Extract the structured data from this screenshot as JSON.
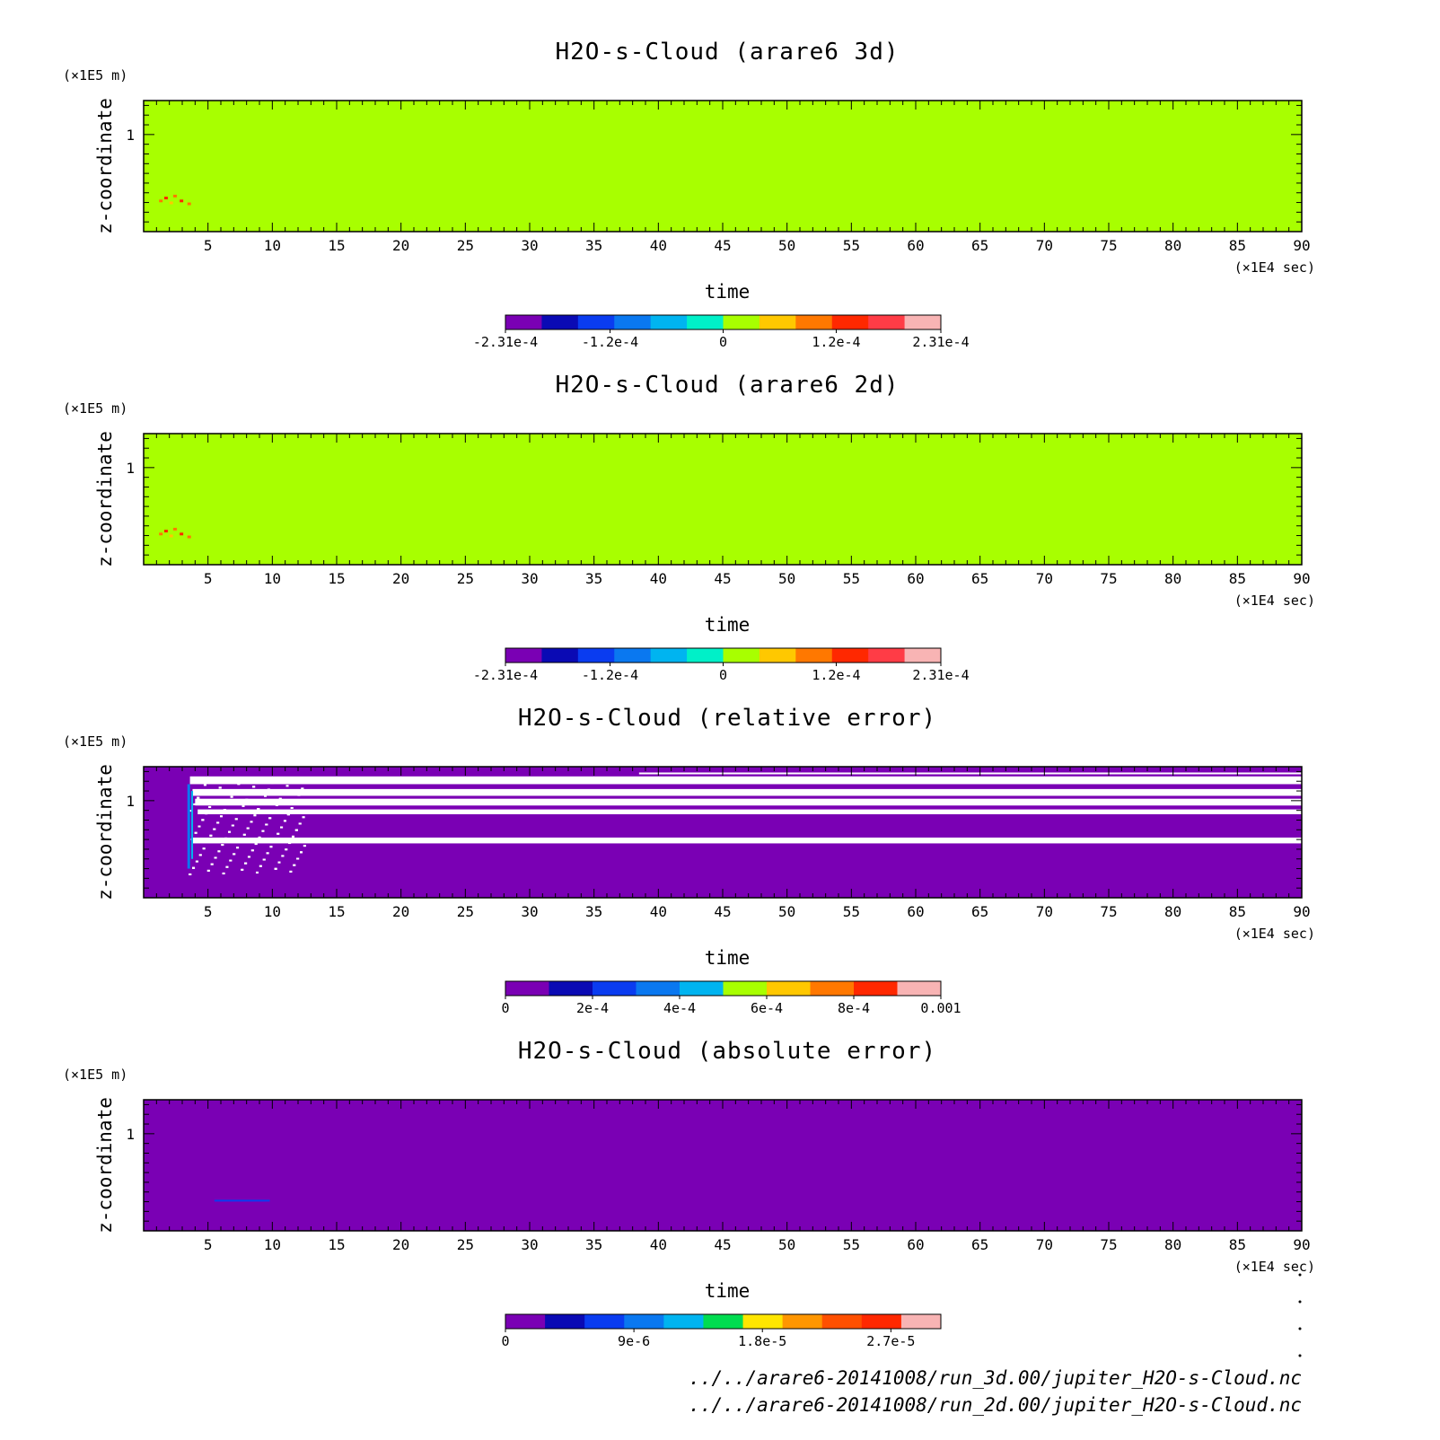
{
  "chart_data": [
    {
      "type": "heatmap",
      "title": "H2O-s-Cloud (arare6 3d)",
      "xlabel": "time",
      "ylabel": "z-coordinate",
      "x_unit": "(×1E4 sec)",
      "y_unit": "(×1E5 m)",
      "xlim": [
        0,
        90
      ],
      "ylim": [
        0,
        1.35
      ],
      "x_ticks": [
        5,
        10,
        15,
        20,
        25,
        30,
        35,
        40,
        45,
        50,
        55,
        60,
        65,
        70,
        75,
        80,
        85,
        90
      ],
      "y_ticks": [
        1
      ],
      "field": "uniform near zero; small positive (orange/red) spots near x≈1–3, z≈0.35",
      "background_color": "#a8ff00",
      "colorbar": {
        "colors": [
          "#7a00b4",
          "#0a0ab4",
          "#0a3cf0",
          "#0a78f0",
          "#00b4f0",
          "#00f0c8",
          "#a8ff00",
          "#ffc800",
          "#ff7800",
          "#ff2800",
          "#ff3c46",
          "#f8b4b4"
        ],
        "tick_labels": [
          "-2.31e-4",
          "-1.2e-4",
          "0",
          "1.2e-4",
          "2.31e-4"
        ],
        "tick_values": [
          -0.000231,
          -0.00012,
          0,
          0.00012,
          0.000231
        ],
        "range": [
          -0.000231,
          0.000231
        ]
      }
    },
    {
      "type": "heatmap",
      "title": "H2O-s-Cloud (arare6 2d)",
      "xlabel": "time",
      "ylabel": "z-coordinate",
      "x_unit": "(×1E4 sec)",
      "y_unit": "(×1E5 m)",
      "xlim": [
        0,
        90
      ],
      "ylim": [
        0,
        1.35
      ],
      "x_ticks": [
        5,
        10,
        15,
        20,
        25,
        30,
        35,
        40,
        45,
        50,
        55,
        60,
        65,
        70,
        75,
        80,
        85,
        90
      ],
      "y_ticks": [
        1
      ],
      "field": "uniform near zero; small positive (orange/red) spots near x≈1–3, z≈0.35",
      "background_color": "#a8ff00",
      "colorbar": {
        "colors": [
          "#7a00b4",
          "#0a0ab4",
          "#0a3cf0",
          "#0a78f0",
          "#00b4f0",
          "#00f0c8",
          "#a8ff00",
          "#ffc800",
          "#ff7800",
          "#ff2800",
          "#ff3c46",
          "#f8b4b4"
        ],
        "tick_labels": [
          "-2.31e-4",
          "-1.2e-4",
          "0",
          "1.2e-4",
          "2.31e-4"
        ],
        "tick_values": [
          -0.000231,
          -0.00012,
          0,
          0.00012,
          0.000231
        ],
        "range": [
          -0.000231,
          0.000231
        ]
      }
    },
    {
      "type": "heatmap",
      "title": "H2O-s-Cloud (relative error)",
      "xlabel": "time",
      "ylabel": "z-coordinate",
      "x_unit": "(×1E4 sec)",
      "y_unit": "(×1E5 m)",
      "xlim": [
        0,
        90
      ],
      "ylim": [
        0,
        1.35
      ],
      "x_ticks": [
        5,
        10,
        15,
        20,
        25,
        30,
        35,
        40,
        45,
        50,
        55,
        60,
        65,
        70,
        75,
        80,
        85,
        90
      ],
      "y_ticks": [
        1
      ],
      "field": "mostly 0 (purple); undefined (white) horizontal bands between z≈0.55 and z≈1.25 after x≈3.5, with a blue/cyan streak at x≈3.5",
      "background_color": "#7a00b4",
      "white_bands_z": [
        [
          1.17,
          1.25
        ],
        [
          1.05,
          1.12
        ],
        [
          0.95,
          1.02
        ],
        [
          0.86,
          0.91
        ],
        [
          0.56,
          0.62
        ]
      ],
      "colorbar": {
        "colors": [
          "#7a00b4",
          "#0a0ab4",
          "#0a3cf0",
          "#0a78f0",
          "#00b4f0",
          "#a8ff00",
          "#ffc800",
          "#ff7800",
          "#ff2800",
          "#f8b4b4"
        ],
        "tick_labels": [
          "0",
          "2e-4",
          "4e-4",
          "6e-4",
          "8e-4",
          "0.001"
        ],
        "tick_values": [
          0,
          0.0002,
          0.0004,
          0.0006,
          0.0008,
          0.001
        ],
        "range": [
          0,
          0.001
        ]
      }
    },
    {
      "type": "heatmap",
      "title": "H2O-s-Cloud (absolute error)",
      "xlabel": "time",
      "ylabel": "z-coordinate",
      "x_unit": "(×1E4 sec)",
      "y_unit": "(×1E5 m)",
      "xlim": [
        0,
        90
      ],
      "ylim": [
        0,
        1.35
      ],
      "x_ticks": [
        5,
        10,
        15,
        20,
        25,
        30,
        35,
        40,
        45,
        50,
        55,
        60,
        65,
        70,
        75,
        80,
        85,
        90
      ],
      "y_ticks": [
        1
      ],
      "field": "uniform 0 (purple); faint blue streak near x≈5–10, z≈0.3",
      "background_color": "#7a00b4",
      "colorbar": {
        "colors": [
          "#7a00b4",
          "#0a0ab4",
          "#0a3cf0",
          "#0a78f0",
          "#00b4f0",
          "#00dc50",
          "#ffe600",
          "#ff9600",
          "#ff5000",
          "#ff2800",
          "#f8b4b4"
        ],
        "tick_labels": [
          "0",
          "9e-6",
          "1.8e-5",
          "2.7e-5"
        ],
        "tick_values": [
          0,
          9e-06,
          1.8e-05,
          2.7e-05
        ],
        "range": [
          0,
          3.05e-05
        ]
      }
    }
  ],
  "footer": {
    "file_3d": "../../arare6-20141008/run_3d.00/jupiter_H2O-s-Cloud.nc",
    "file_2d": "../../arare6-20141008/run_2d.00/jupiter_H2O-s-Cloud.nc"
  }
}
